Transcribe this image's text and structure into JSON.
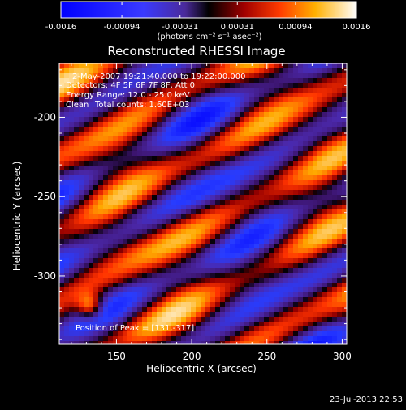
{
  "colorbar": {
    "tick_labels": [
      "-0.0016",
      "-0.00094",
      "-0.00031",
      "0.00031",
      "0.00094",
      "0.0016"
    ],
    "units_label": "(photons cm⁻² s⁻¹ asec⁻²)",
    "range": [
      -0.0016,
      0.0016
    ]
  },
  "chart_data": {
    "type": "heatmap",
    "title": "Reconstructed RHESSI Image",
    "xlabel": "Heliocentric X (arcsec)",
    "ylabel": "Heliocentric Y (arcsec)",
    "xlim": [
      112,
      303
    ],
    "ylim": [
      -343,
      -166
    ],
    "x_ticks": [
      150,
      200,
      250,
      300
    ],
    "y_ticks": [
      -200,
      -250,
      -300
    ],
    "annotations": {
      "time_range": "2-May-2007 19:21:40.000 to 19:22:00.000",
      "detectors": "Detectors: 4F 5F 6F 7F 8F, Att 0",
      "energy_range": "Energy Range: 12.0 - 25.0 keV",
      "method": "Clean",
      "total_counts": "Total counts: 1.60E+03",
      "peak": "Position of Peak = [131,-317]"
    },
    "peak_position": [
      131,
      -317
    ]
  },
  "footer": {
    "timestamp": "23-Jul-2013 22:53"
  }
}
